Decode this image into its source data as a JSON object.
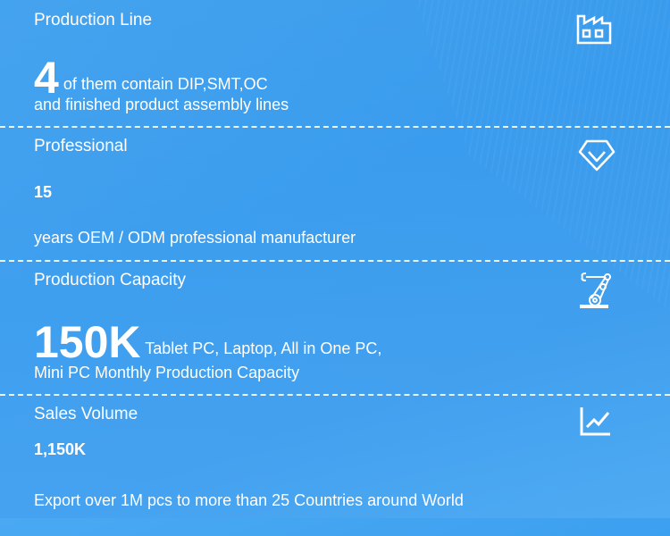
{
  "sections": [
    {
      "title": "Production Line",
      "number": "4",
      "line1": "of them contain DIP,SMT,OC",
      "line2": "and finished product assembly lines",
      "icon": "factory-icon"
    },
    {
      "title": "Professional",
      "number": "15",
      "line1": "",
      "line2": "years OEM / ODM professional manufacturer",
      "icon": "diamond-check-icon"
    },
    {
      "title": "Production Capacity",
      "number": "150K",
      "line1": "Tablet PC, Laptop, All in One PC,",
      "line2": "Mini PC Monthly Production Capacity",
      "icon": "robot-arm-icon"
    },
    {
      "title": "Sales Volume",
      "number": "1,150K",
      "line1": "",
      "line2": "Export over 1M pcs to more than 25 Countries around World",
      "icon": "line-chart-icon"
    }
  ],
  "colors": {
    "background": "#3ea2f0",
    "text": "#ffffff"
  }
}
